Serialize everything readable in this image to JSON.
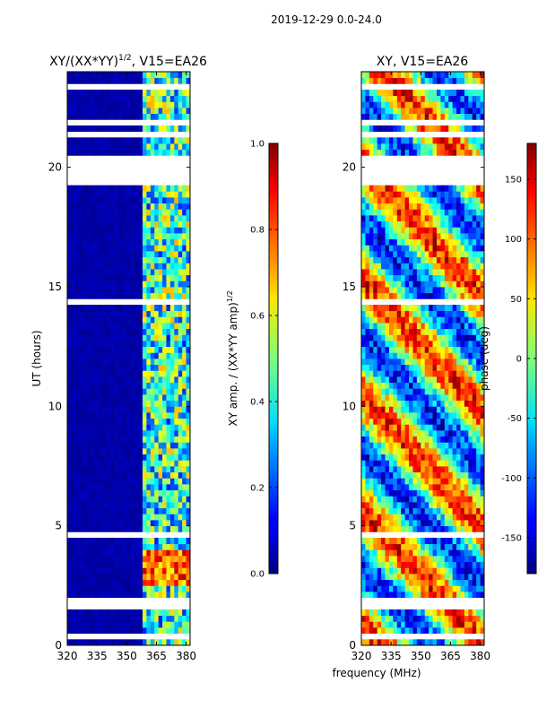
{
  "suptitle": "2019-12-29 0.0-24.0",
  "xlabel_shared": "frequency (MHz)",
  "chart_data": [
    {
      "type": "heatmap",
      "title": "XY/(XX*YY)",
      "title_exp": "1/2",
      "title_suffix": ", V15=EA26",
      "ylabel": "UT (hours)",
      "xlim": [
        320,
        382
      ],
      "ylim": [
        0,
        24
      ],
      "xticks": [
        "320",
        "335",
        "350",
        "365",
        "380"
      ],
      "xtick_values": [
        320,
        335,
        350,
        365,
        380
      ],
      "yticks": [
        "0",
        "5",
        "10",
        "15",
        "20"
      ],
      "ytick_values": [
        0,
        5,
        10,
        15,
        20
      ],
      "colorbar": {
        "label": "XY amp. / (XX*YY amp)",
        "label_exp": "1/2",
        "ticks": [
          "0.0",
          "0.2",
          "0.4",
          "0.6",
          "0.8",
          "1.0"
        ],
        "tick_values": [
          0,
          0.2,
          0.4,
          0.6,
          0.8,
          1.0
        ],
        "range": [
          0,
          1
        ]
      }
    },
    {
      "type": "heatmap",
      "title": "XY, V15=EA26",
      "xlim": [
        320,
        382
      ],
      "ylim": [
        0,
        24
      ],
      "xticks": [
        "320",
        "335",
        "350",
        "365",
        "380"
      ],
      "xtick_values": [
        320,
        335,
        350,
        365,
        380
      ],
      "yticks": [
        "0",
        "5",
        "10",
        "15",
        "20"
      ],
      "ytick_values": [
        0,
        5,
        10,
        15,
        20
      ],
      "colorbar": {
        "label": "phase (deg)",
        "ticks": [
          "-150",
          "-100",
          "-50",
          "0",
          "50",
          "100",
          "150"
        ],
        "tick_values": [
          -150,
          -100,
          -50,
          0,
          50,
          100,
          150
        ],
        "range": [
          -180,
          180
        ]
      }
    }
  ]
}
